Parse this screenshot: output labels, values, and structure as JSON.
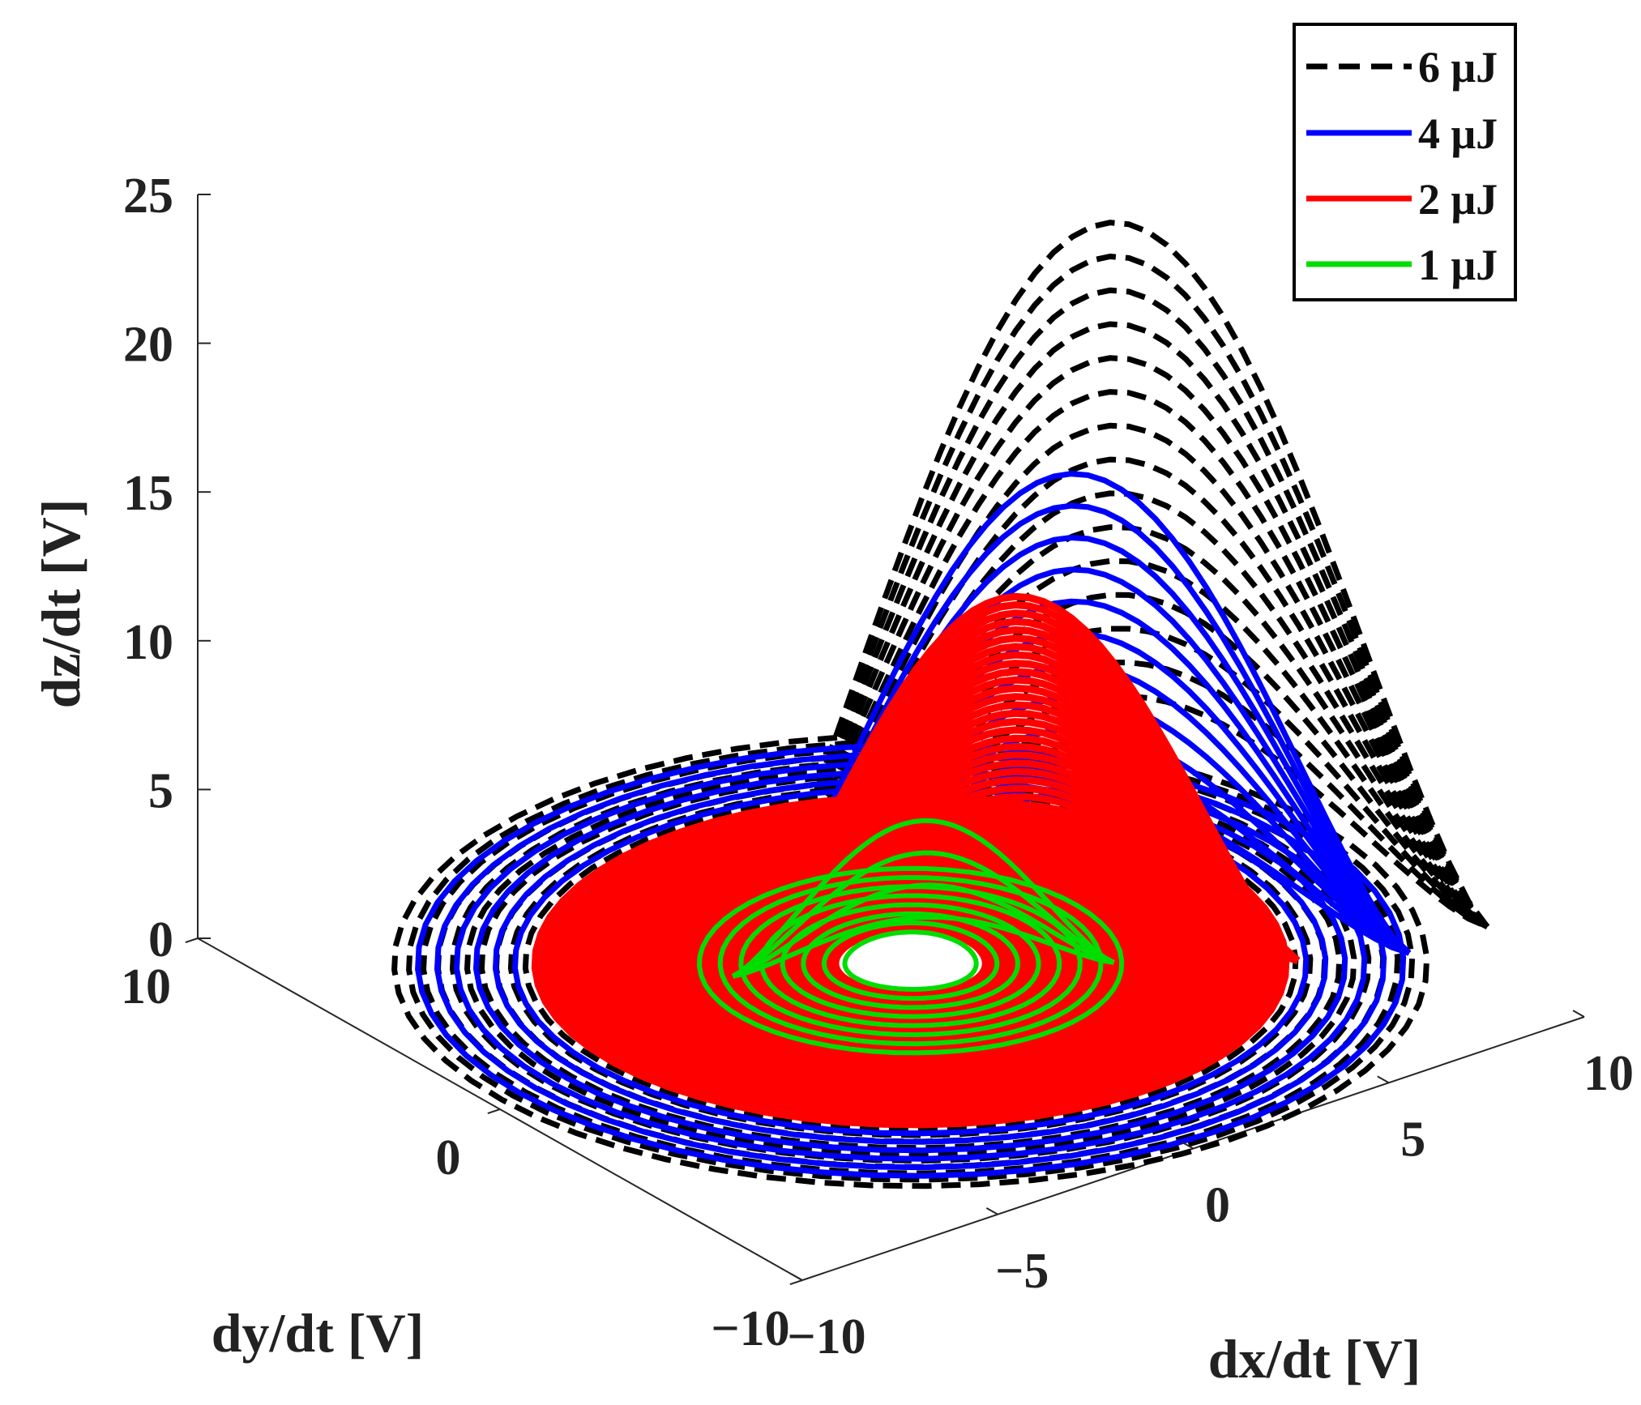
{
  "chart_data": {
    "type": "line",
    "projection": "3d",
    "xlabel": "dx/dt [V]",
    "ylabel": "dy/dt [V]",
    "zlabel": "dz/dt [V]",
    "xlim": [
      -10,
      10
    ],
    "ylim": [
      -10,
      10
    ],
    "zlim": [
      0,
      25
    ],
    "x_ticks": [
      {
        "value": -10,
        "label": "−10"
      },
      {
        "value": -5,
        "label": "−5"
      },
      {
        "value": 0,
        "label": "0"
      },
      {
        "value": 5,
        "label": "5"
      },
      {
        "value": 10,
        "label": "10"
      }
    ],
    "y_ticks": [
      {
        "value": -10,
        "label": "−10"
      },
      {
        "value": 0,
        "label": "0"
      },
      {
        "value": 10,
        "label": "10"
      }
    ],
    "z_ticks": [
      {
        "value": 0,
        "label": "0"
      },
      {
        "value": 5,
        "label": "5"
      },
      {
        "value": 10,
        "label": "10"
      },
      {
        "value": 15,
        "label": "15"
      },
      {
        "value": 20,
        "label": "20"
      },
      {
        "value": 25,
        "label": "25"
      }
    ],
    "grid": false,
    "legend_position": "top-right",
    "series": [
      {
        "name": "6 μJ",
        "color": "#000000",
        "style": "dashed",
        "max_z": 24.5,
        "x_range": [
          -9,
          11
        ],
        "y_range": [
          -10,
          9
        ],
        "spiral_radius": [
          2.0,
          11.0
        ],
        "spiral_turns": 30
      },
      {
        "name": "4 μJ",
        "color": "#0000ff",
        "style": "solid",
        "max_z": 16.5,
        "x_range": [
          -9,
          9
        ],
        "y_range": [
          -10,
          9
        ],
        "spiral_radius": [
          1.8,
          10.5
        ],
        "spiral_turns": 22
      },
      {
        "name": "2 μJ",
        "color": "#ff0000",
        "style": "solid",
        "max_z": 12.5,
        "x_range": [
          -7,
          7
        ],
        "y_range": [
          -8,
          7
        ],
        "spiral_radius": [
          1.6,
          8.0
        ],
        "spiral_turns": 60
      },
      {
        "name": "1 μJ",
        "color": "#00dd00",
        "style": "solid",
        "max_z": 5.0,
        "x_range": [
          -4,
          4
        ],
        "y_range": [
          -4,
          4
        ],
        "spiral_radius": [
          1.4,
          4.5
        ],
        "spiral_turns": 8
      }
    ]
  }
}
